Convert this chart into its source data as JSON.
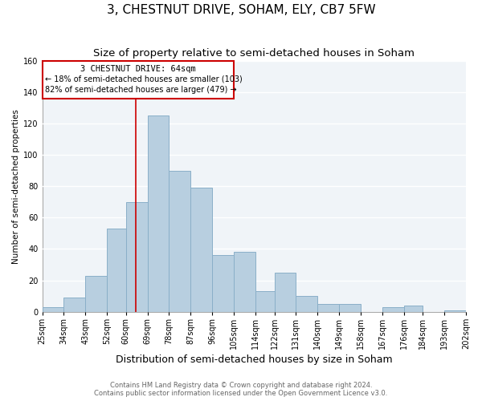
{
  "title": "3, CHESTNUT DRIVE, SOHAM, ELY, CB7 5FW",
  "subtitle": "Size of property relative to semi-detached houses in Soham",
  "xlabel": "Distribution of semi-detached houses by size in Soham",
  "ylabel": "Number of semi-detached properties",
  "bin_labels": [
    "25sqm",
    "34sqm",
    "43sqm",
    "52sqm",
    "60sqm",
    "69sqm",
    "78sqm",
    "87sqm",
    "96sqm",
    "105sqm",
    "114sqm",
    "122sqm",
    "131sqm",
    "140sqm",
    "149sqm",
    "158sqm",
    "167sqm",
    "176sqm",
    "184sqm",
    "193sqm",
    "202sqm"
  ],
  "bin_edges": [
    25,
    34,
    43,
    52,
    60,
    69,
    78,
    87,
    96,
    105,
    114,
    122,
    131,
    140,
    149,
    158,
    167,
    176,
    184,
    193,
    202
  ],
  "bar_heights": [
    3,
    9,
    23,
    53,
    70,
    125,
    90,
    79,
    36,
    38,
    13,
    25,
    10,
    5,
    5,
    0,
    3,
    4,
    0,
    1
  ],
  "bar_color": "#b8cfe0",
  "bar_edge_color": "#8aafc8",
  "vline_x": 64,
  "vline_color": "#cc0000",
  "annotation_title": "3 CHESTNUT DRIVE: 64sqm",
  "annotation_line1": "← 18% of semi-detached houses are smaller (103)",
  "annotation_line2": "82% of semi-detached houses are larger (479) →",
  "annotation_box_facecolor": "#ffffff",
  "annotation_box_edgecolor": "#cc0000",
  "ylim": [
    0,
    160
  ],
  "yticks": [
    0,
    20,
    40,
    60,
    80,
    100,
    120,
    140,
    160
  ],
  "footer_line1": "Contains HM Land Registry data © Crown copyright and database right 2024.",
  "footer_line2": "Contains public sector information licensed under the Open Government Licence v3.0.",
  "background_color": "#ffffff",
  "plot_bg_color": "#f0f4f8",
  "grid_color": "#ffffff",
  "title_fontsize": 11,
  "subtitle_fontsize": 9.5,
  "xlabel_fontsize": 9,
  "ylabel_fontsize": 7.5,
  "tick_fontsize": 7,
  "footer_fontsize": 6,
  "ann_title_fontsize": 7.5,
  "ann_text_fontsize": 7
}
